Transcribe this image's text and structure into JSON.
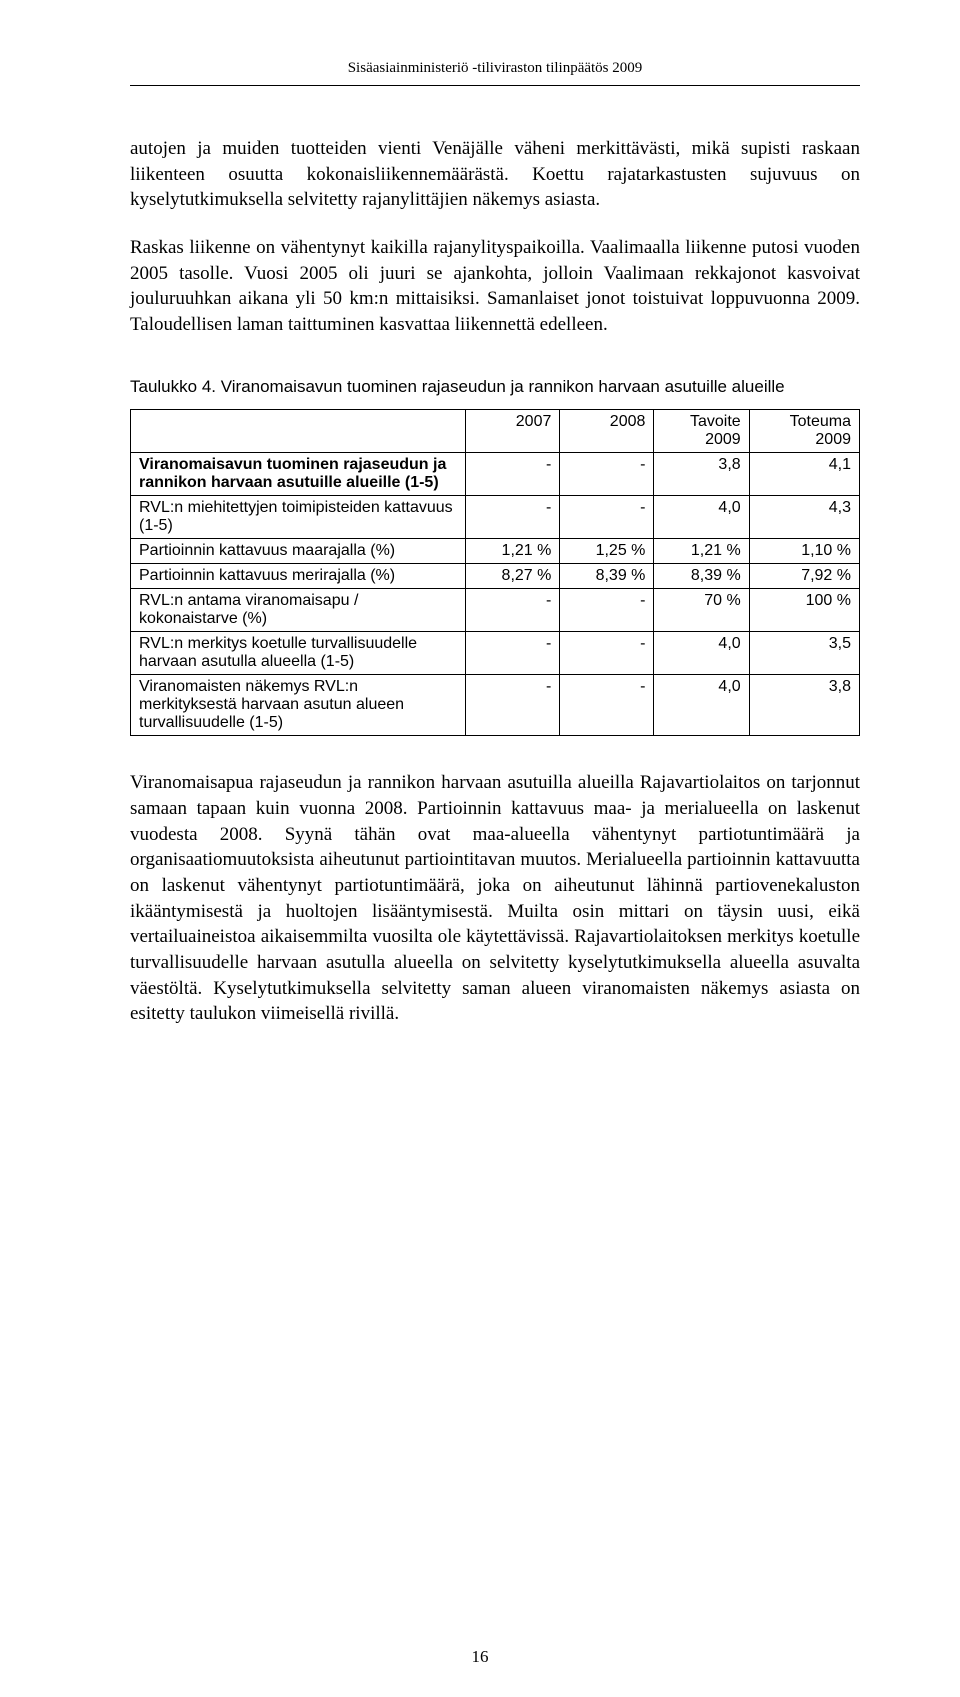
{
  "header": {
    "text": "Sisäasiainministeriö -tiliviraston tilinpäätös 2009"
  },
  "paragraphs": {
    "p1": "autojen ja muiden tuotteiden vienti Venäjälle väheni merkittävästi, mikä supisti raskaan liikenteen osuutta kokonaisliikennemäärästä. Koettu rajatarkastusten sujuvuus on kyselytutkimuksella selvitetty rajanylittäjien näkemys asiasta.",
    "p2": "Raskas liikenne on vähentynyt kaikilla rajanylityspaikoilla. Vaalimaalla liikenne putosi vuoden 2005 tasolle. Vuosi 2005 oli juuri se ajankohta, jolloin Vaalimaan rekkajonot kasvoivat jouluruuhkan aikana yli 50 km:n mittaisiksi. Samanlaiset jonot toistuivat loppuvuonna 2009. Taloudellisen laman taittuminen kasvattaa liikennettä edelleen.",
    "p3": "Viranomaisapua rajaseudun ja rannikon harvaan asutuilla alueilla Rajavartiolaitos on tarjonnut samaan tapaan kuin vuonna 2008. Partioinnin kattavuus maa- ja merialueella on laskenut vuodesta 2008. Syynä tähän ovat maa-alueella vähentynyt partiotuntimäärä ja organisaatiomuutoksista aiheutunut partiointitavan muutos. Merialueella partioinnin kattavuutta on laskenut vähentynyt partiotuntimäärä, joka on aiheutunut lähinnä partiovenekaluston ikääntymisestä ja huoltojen lisääntymisestä. Muilta osin mittari on täysin uusi, eikä vertailuaineistoa aikaisemmilta vuosilta ole käytettävissä. Rajavartiolaitoksen merkitys koetulle turvallisuudelle harvaan asutulla alueella on selvitetty kyselytutkimuksella alueella asuvalta väestöltä. Kyselytutkimuksella selvitetty saman alueen viranomaisten näkemys asiasta on esitetty taulukon viimeisellä rivillä."
  },
  "table": {
    "caption": "Taulukko 4. Viranomaisavun tuominen rajaseudun ja rannikon harvaan asutuille alueille",
    "columns": {
      "c1": "2007",
      "c2": "2008",
      "c3a": "Tavoite",
      "c3b": "2009",
      "c4a": "Toteuma",
      "c4b": "2009"
    },
    "rows": [
      {
        "label": "Viranomaisavun tuominen rajaseudun ja rannikon harvaan asutuille alueille (1-5)",
        "bold": true,
        "v1": "-",
        "v2": "-",
        "v3": "3,8",
        "v4": "4,1"
      },
      {
        "label": "RVL:n miehitettyjen toimipisteiden kattavuus (1-5)",
        "bold": false,
        "v1": "-",
        "v2": "-",
        "v3": "4,0",
        "v4": "4,3"
      },
      {
        "label": "Partioinnin kattavuus maarajalla (%)",
        "bold": false,
        "v1": "1,21 %",
        "v2": "1,25 %",
        "v3": "1,21 %",
        "v4": "1,10 %"
      },
      {
        "label": "Partioinnin kattavuus merirajalla (%)",
        "bold": false,
        "v1": "8,27 %",
        "v2": "8,39 %",
        "v3": "8,39 %",
        "v4": "7,92 %"
      },
      {
        "label": "RVL:n antama viranomaisapu / kokonaistarve (%)",
        "bold": false,
        "v1": "-",
        "v2": "-",
        "v3": "70 %",
        "v4": "100 %"
      },
      {
        "label": "RVL:n merkitys koetulle turvallisuudelle harvaan asutulla alueella (1-5)",
        "bold": false,
        "v1": "-",
        "v2": "-",
        "v3": "4,0",
        "v4": "3,5"
      },
      {
        "label": "Viranomaisten näkemys RVL:n merkityksestä harvaan asutun alueen turvallisuudelle (1-5)",
        "bold": false,
        "v1": "-",
        "v2": "-",
        "v3": "4,0",
        "v4": "3,8"
      }
    ]
  },
  "pagenum": "16"
}
